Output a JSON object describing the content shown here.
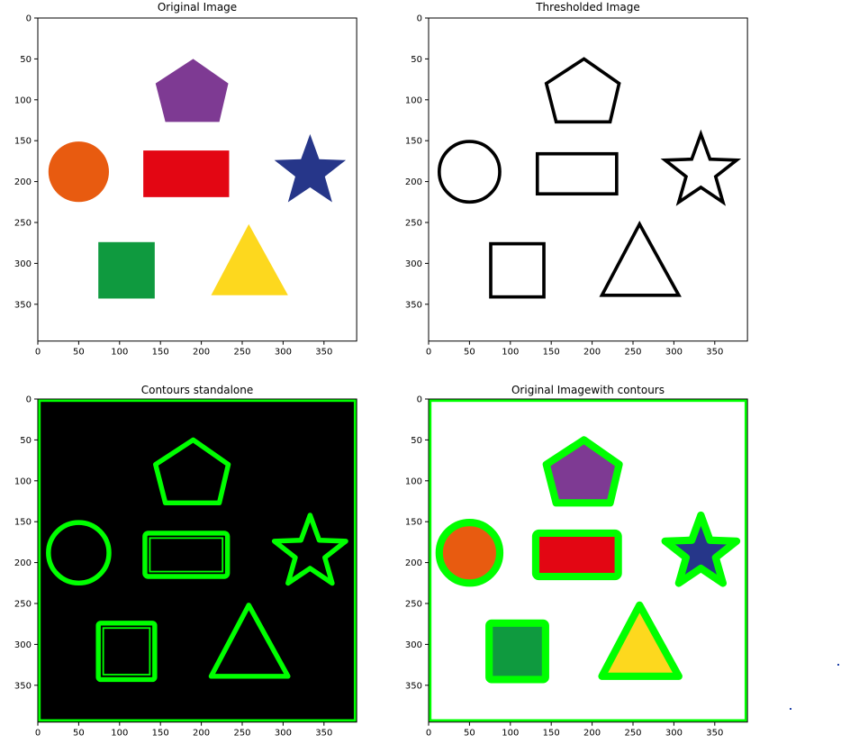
{
  "figure": {
    "panels": [
      {
        "id": "original",
        "title": "Original Image"
      },
      {
        "id": "thresholded",
        "title": "Thresholded Image"
      },
      {
        "id": "contours",
        "title": "Contours standalone"
      },
      {
        "id": "overlay",
        "title": "Original Imagewith contours"
      }
    ],
    "x_ticks": [
      "0",
      "50",
      "100",
      "150",
      "200",
      "250",
      "300",
      "350"
    ],
    "y_ticks": [
      "0",
      "50",
      "100",
      "150",
      "200",
      "250",
      "300",
      "350"
    ],
    "image_extent": {
      "width": 390,
      "height": 395
    },
    "shapes": [
      {
        "name": "pentagon",
        "color": "#7e3a93"
      },
      {
        "name": "circle",
        "color": "#e85b10"
      },
      {
        "name": "rectangle",
        "color": "#e30613"
      },
      {
        "name": "star",
        "color": "#263689"
      },
      {
        "name": "square",
        "color": "#0f9a3f"
      },
      {
        "name": "triangle",
        "color": "#fdd81e"
      }
    ],
    "contour_color": "#00ff00",
    "background_black": "#000000"
  }
}
